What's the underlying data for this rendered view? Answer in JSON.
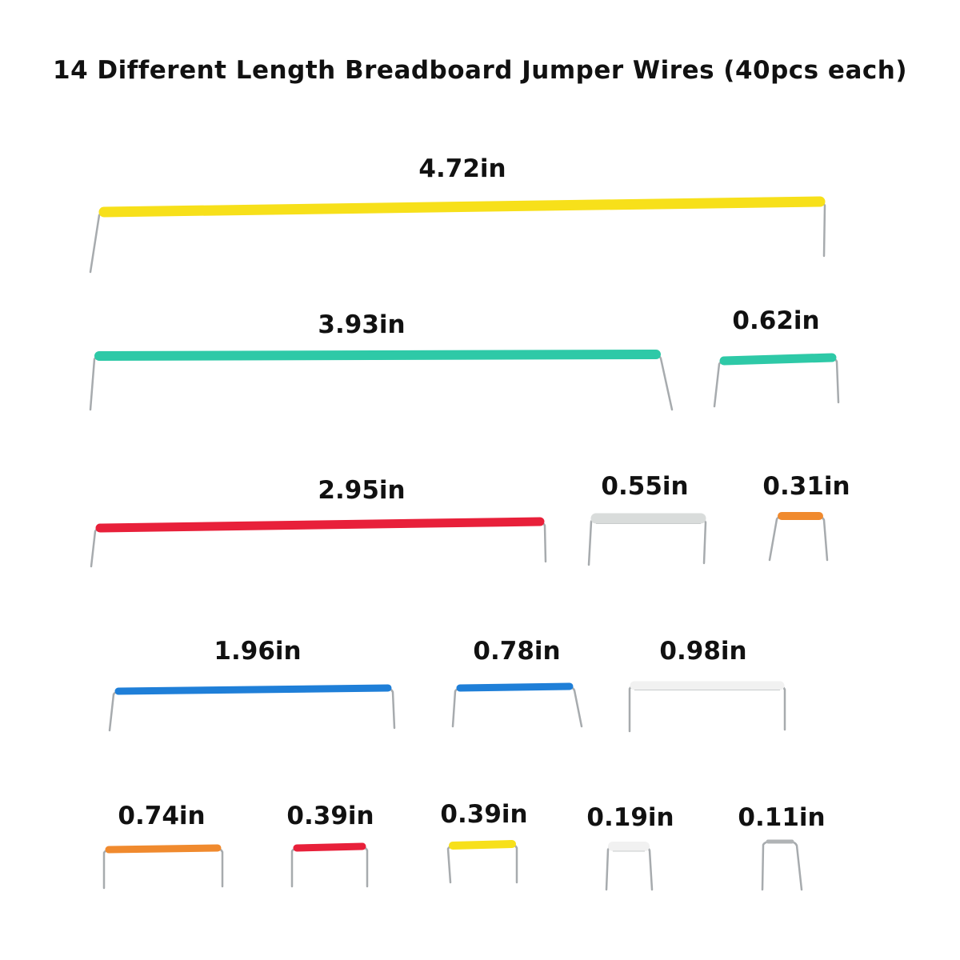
{
  "title": "14 Different Length Breadboard Jumper Wires (40pcs each)",
  "wires": [
    {
      "label": "4.72in",
      "color": "#f7e01a"
    },
    {
      "label": "3.93in",
      "color": "#2ec9a7"
    },
    {
      "label": "0.62in",
      "color": "#2ec9a7"
    },
    {
      "label": "2.95in",
      "color": "#e8203a"
    },
    {
      "label": "0.55in",
      "color": "#d9dcdb"
    },
    {
      "label": "0.31in",
      "color": "#f08a2e"
    },
    {
      "label": "1.96in",
      "color": "#1f7fd8"
    },
    {
      "label": "0.78in",
      "color": "#1f7fd8"
    },
    {
      "label": "0.98in",
      "color": "#f1f1f1"
    },
    {
      "label": "0.74in",
      "color": "#f08a2e"
    },
    {
      "label": "0.39in",
      "color": "#e8203a"
    },
    {
      "label": "0.39in",
      "color": "#f7e01a"
    },
    {
      "label": "0.19in",
      "color": "#f1f1f1"
    },
    {
      "label": "0.11in",
      "color": "#b0b3b5"
    }
  ]
}
